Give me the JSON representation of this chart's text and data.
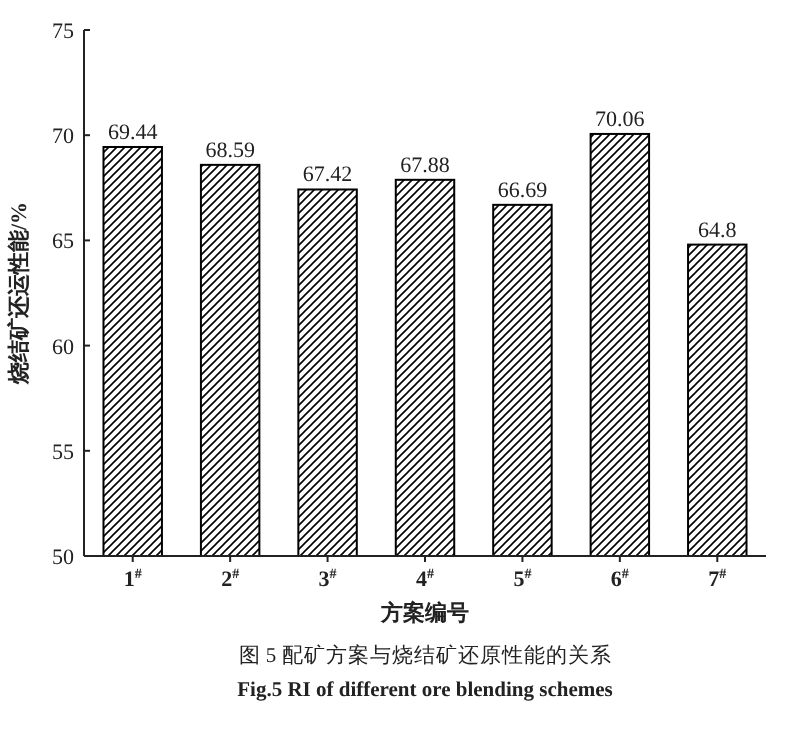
{
  "chart_data": {
    "type": "bar",
    "categories": [
      "1$^{#}$",
      "2$^{#}$",
      "3$^{#}$",
      "4$^{#}$",
      "5$^{#}$",
      "6$^{#}$",
      "7$^{#}$"
    ],
    "values": [
      69.44,
      68.59,
      67.42,
      67.88,
      66.69,
      70.06,
      64.8
    ],
    "color": "#000000",
    "data_labels": true,
    "ylim": [
      50,
      75
    ],
    "yticks": [
      50,
      55,
      60,
      65,
      70,
      75
    ],
    "xlabel": "方案编号",
    "ylabel": "烧结矿还运性能/%",
    "annotations": [
      "图 5   配矿方案与烧结矿还原性能的关系",
      "Fig.5   RI of different ore blending schemes"
    ]
  }
}
